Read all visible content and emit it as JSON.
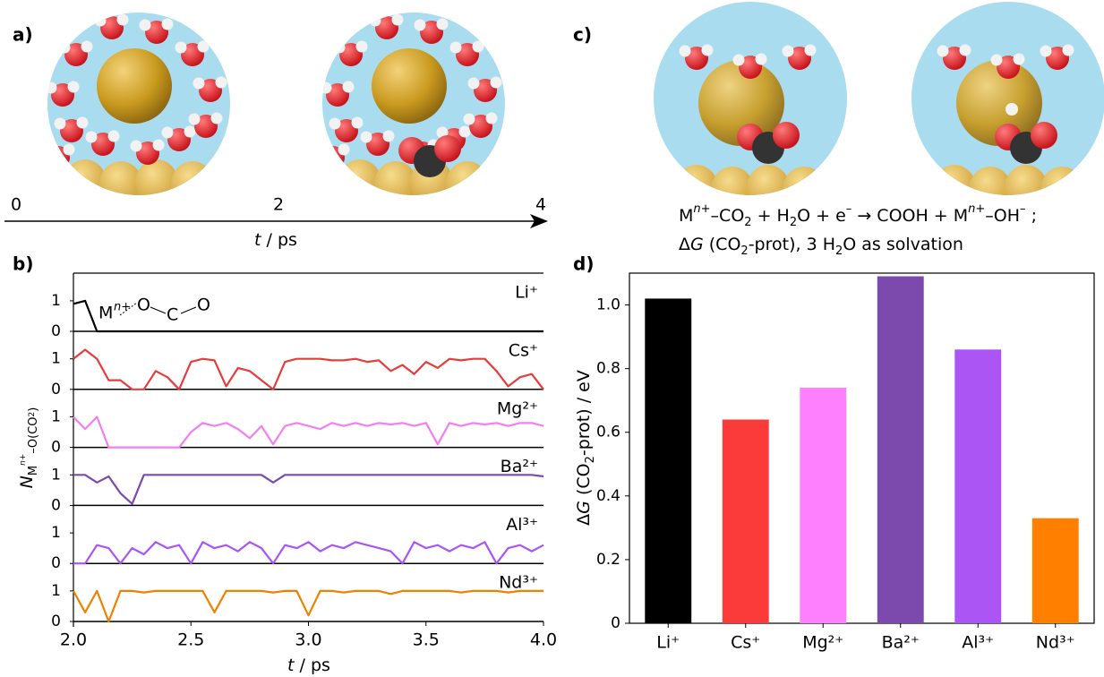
{
  "panel_labels": [
    "a)",
    "b)",
    "c)",
    "d)"
  ],
  "panel_a": {
    "timeline": {
      "xlim": [
        0,
        4
      ],
      "ticks": [
        0,
        2,
        4
      ],
      "label": [
        "t",
        " / ps"
      ]
    }
  },
  "panel_c": {
    "equation": [
      "M",
      "n+",
      "–CO",
      "2",
      " + H",
      "2",
      "O + e",
      "–",
      " → COOH + M",
      "n+",
      "–OH",
      "–",
      " ;"
    ],
    "condition": [
      "Δ",
      "G",
      " (CO",
      "2",
      "-prot), 3 H",
      "2",
      "O as solvation"
    ]
  },
  "chart_data": [
    {
      "type": "line",
      "x": [
        2,
        2.05,
        2.1,
        2.15,
        2.2,
        2.25,
        2.3,
        2.35,
        2.4,
        2.45,
        2.5,
        2.55,
        2.6,
        2.65,
        2.7,
        2.75,
        2.8,
        2.85,
        2.9,
        2.95,
        3,
        3.05,
        3.1,
        3.15,
        3.2,
        3.25,
        3.3,
        3.35,
        3.4,
        3.45,
        3.5,
        3.55,
        3.6,
        3.65,
        3.7,
        3.75,
        3.8,
        3.85,
        3.9,
        3.95,
        4
      ],
      "xlim": [
        2,
        4
      ],
      "xticks": [
        {
          "value": 2,
          "label": "2.0"
        },
        {
          "value": 2.5,
          "label": "2.5"
        },
        {
          "value": 3,
          "label": "3.0"
        },
        {
          "value": 3.5,
          "label": "3.5"
        },
        {
          "value": 4,
          "label": "4.0"
        }
      ],
      "xlabel": [
        "t",
        " / ps"
      ],
      "ylabel": [
        "N",
        "M",
        "n+",
        "–O(CO",
        "2",
        ")"
      ],
      "ylim": [
        0,
        1.9
      ],
      "yticks": [
        0,
        1
      ],
      "inset": {
        "metal": "M",
        "charge": "n+",
        "atoms": [
          "O",
          "C",
          "O"
        ]
      },
      "series": [
        {
          "name": "Li⁺",
          "color": "#000000",
          "values": [
            0.9,
            1,
            0,
            0,
            0,
            0,
            0,
            0,
            0,
            0,
            0,
            0,
            0,
            0,
            0,
            0,
            0,
            0,
            0,
            0,
            0,
            0,
            0,
            0,
            0,
            0,
            0,
            0,
            0,
            0,
            0,
            0,
            0,
            0,
            0,
            0,
            0,
            0,
            0,
            0,
            0
          ]
        },
        {
          "name": "Cs⁺",
          "color": "#e83c3c",
          "values": [
            1,
            1.3,
            1,
            0.3,
            0.3,
            0,
            0,
            0.6,
            0.4,
            0,
            0.9,
            1,
            0.95,
            0.1,
            0.7,
            0.6,
            0.3,
            0,
            0.9,
            1,
            1,
            1,
            0.95,
            0.95,
            1,
            0.9,
            0.95,
            0.6,
            0.8,
            0.5,
            0.9,
            0.7,
            1,
            0.95,
            1,
            1,
            0.6,
            0.1,
            0.4,
            0.5,
            0
          ]
        },
        {
          "name": "Mg²⁺",
          "color": "#f27ef2",
          "values": [
            1,
            0.6,
            1,
            0,
            0,
            0,
            0,
            0,
            0,
            0,
            0.5,
            0.8,
            0.7,
            0.8,
            0.6,
            0.3,
            0.7,
            0.1,
            0.7,
            0.8,
            0.7,
            0.6,
            0.8,
            0.7,
            0.8,
            0.7,
            0.8,
            0.75,
            0.8,
            0.7,
            0.8,
            0.1,
            0.8,
            0.7,
            0.8,
            0.75,
            0.8,
            0.7,
            0.8,
            0.8,
            0.7
          ]
        },
        {
          "name": "Ba²⁺",
          "color": "#7b4aac",
          "values": [
            1,
            1,
            0.75,
            0.95,
            0.4,
            0.05,
            1,
            1,
            1,
            1,
            1,
            1,
            1,
            1,
            1,
            1,
            1,
            0.75,
            1,
            1,
            1,
            1,
            1,
            1,
            1,
            1,
            1,
            1,
            1,
            1,
            1,
            1,
            1,
            1,
            1,
            1,
            1,
            1,
            1,
            1,
            0.95
          ]
        },
        {
          "name": "Al³⁺",
          "color": "#a855f7",
          "values": [
            0,
            0,
            0.6,
            0.5,
            0,
            0.5,
            0.3,
            0.7,
            0.5,
            0.6,
            0,
            0.7,
            0.5,
            0.6,
            0.4,
            0.7,
            0.5,
            0,
            0.6,
            0.5,
            0.7,
            0.4,
            0.6,
            0.5,
            0.7,
            0.6,
            0.5,
            0.4,
            0,
            0.7,
            0.5,
            0.6,
            0.4,
            0.6,
            0.5,
            0.7,
            0,
            0.5,
            0.6,
            0.4,
            0.6
          ]
        },
        {
          "name": "Nd³⁺",
          "color": "#f08000",
          "values": [
            1,
            0.3,
            1,
            0,
            1,
            1,
            0.95,
            1,
            1,
            1,
            1,
            1,
            0.3,
            1,
            1,
            1,
            1,
            0.95,
            1,
            1,
            0.2,
            1,
            1,
            0.95,
            1,
            1,
            1,
            0.9,
            1,
            1,
            1,
            1,
            1,
            0.95,
            1,
            1,
            1,
            0.95,
            1,
            1,
            1
          ]
        }
      ]
    },
    {
      "type": "bar",
      "categories": [
        "Li⁺",
        "Cs⁺",
        "Mg²⁺",
        "Ba²⁺",
        "Al³⁺",
        "Nd³⁺"
      ],
      "values": [
        1.02,
        0.64,
        0.74,
        1.09,
        0.86,
        0.33
      ],
      "colors": [
        "#000000",
        "#fb3a3a",
        "#ff80ff",
        "#7b4aac",
        "#ac55f5",
        "#ff8000"
      ],
      "ylabel": [
        "Δ",
        "G",
        " (CO",
        "2",
        "-prot) / eV"
      ],
      "ylim": [
        0,
        1.1
      ],
      "yticks": [
        0,
        0.2,
        0.4,
        0.6,
        0.8,
        {
          "value": 1,
          "label": "1.0"
        }
      ]
    }
  ]
}
